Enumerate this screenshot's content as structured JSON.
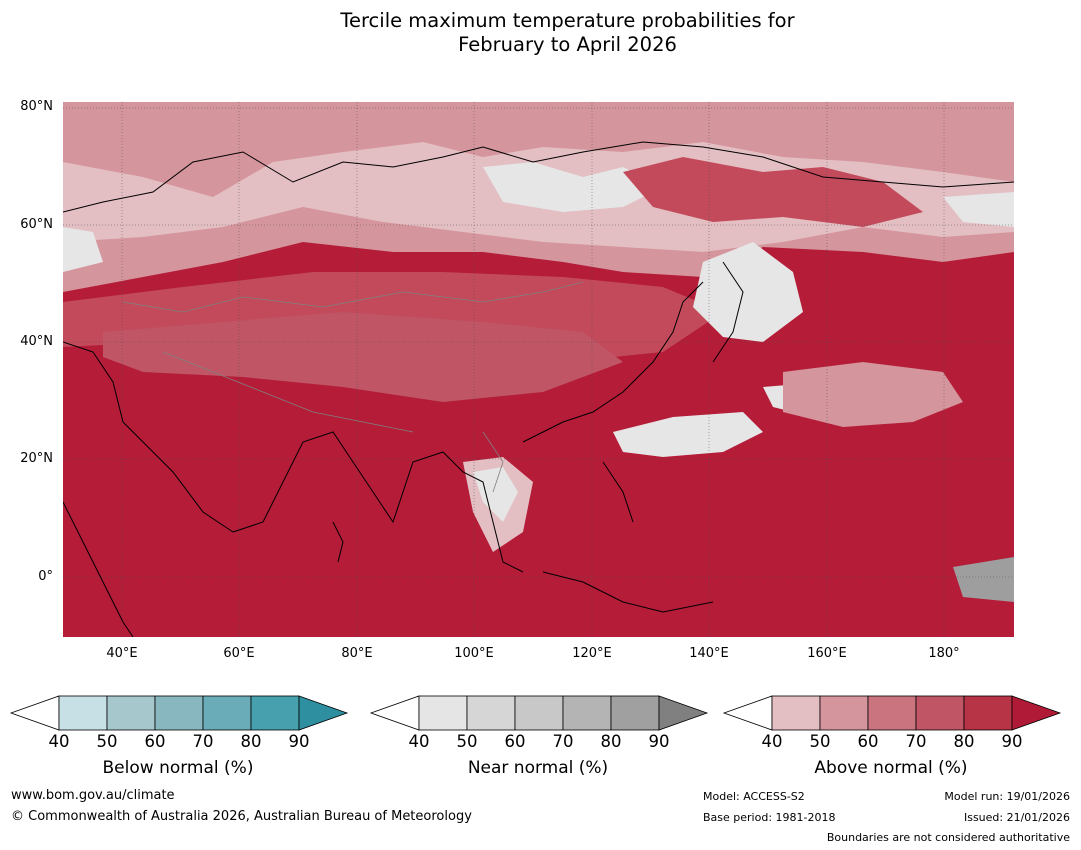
{
  "title": {
    "line1": "Tercile maximum temperature probabilities for",
    "line2": "February to April 2026"
  },
  "map": {
    "lat_labels": [
      "80°N",
      "60°N",
      "40°N",
      "20°N",
      "0°"
    ],
    "lon_labels": [
      "40°E",
      "60°E",
      "80°E",
      "100°E",
      "120°E",
      "140°E",
      "160°E",
      "180°"
    ],
    "colors": {
      "above_max": "#b41c38",
      "above_mid": "#c24a5b",
      "above_low": "#d4959c",
      "above_min": "#e3bec3",
      "near_low": "#e6e6e6",
      "near_mid": "#d0d0d0",
      "near_high": "#9e9e9e",
      "below_low": "#c7e0e6",
      "coast": "#000000",
      "border": "#808080",
      "grid": "#555555"
    }
  },
  "colorbars": [
    {
      "id": "below",
      "title": "Below normal (%)",
      "ticks": [
        "40",
        "50",
        "60",
        "70",
        "80",
        "90"
      ],
      "colors": [
        "#ffffff",
        "#c7e0e6",
        "#a6c8cd",
        "#89b7bf",
        "#6aacb7",
        "#47a0ae",
        "#2e8fa0"
      ]
    },
    {
      "id": "near",
      "title": "Near normal (%)",
      "ticks": [
        "40",
        "50",
        "60",
        "70",
        "80",
        "90"
      ],
      "colors": [
        "#ffffff",
        "#e5e5e5",
        "#d6d6d6",
        "#c8c8c8",
        "#b4b4b4",
        "#a0a0a0",
        "#808080"
      ]
    },
    {
      "id": "above",
      "title": "Above normal (%)",
      "ticks": [
        "40",
        "50",
        "60",
        "70",
        "80",
        "90"
      ],
      "colors": [
        "#ffffff",
        "#e3bec3",
        "#d4959c",
        "#c9747e",
        "#bf5565",
        "#b73447",
        "#b01a36"
      ]
    }
  ],
  "footer": {
    "website": "www.bom.gov.au/climate",
    "copyright": "© Commonwealth of Australia 2026, Australian Bureau of Meteorology",
    "model": "Model: ACCESS-S2",
    "base_period": "Base period: 1981-2018",
    "model_run": "Model run: 19/01/2026",
    "issued": "Issued: 21/01/2026",
    "disclaimer": "Boundaries are not considered authoritative"
  }
}
